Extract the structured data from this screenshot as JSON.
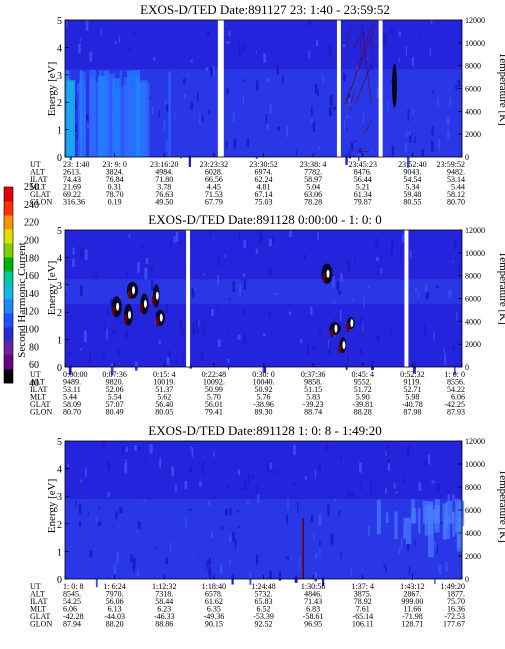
{
  "colorbar": {
    "label": "Second Harmonic Current",
    "ticks": [
      "40",
      "60",
      "80",
      "100",
      "120",
      "140",
      "160",
      "180",
      "200",
      "220",
      "240",
      "250"
    ],
    "colors": [
      "#000000",
      "#6a0080",
      "#6b1fa6",
      "#2b2bd1",
      "#1f4fff",
      "#1e88ff",
      "#17b6e8",
      "#00c8a0",
      "#00b000",
      "#7fd000",
      "#e0e000",
      "#ff9000",
      "#ff3000",
      "#e00000"
    ]
  },
  "colors": {
    "background_plasma": "#2424dc",
    "gap": "#ffffff",
    "fill_base": "#2a3ae8",
    "trace_dark": "#6a0000"
  },
  "eph_labels": [
    "UT",
    "ALT",
    "ILAT",
    "MLT",
    "GLAT",
    "GLON"
  ],
  "chart_data": [
    {
      "type": "heatmap",
      "title": "EXOS-D/TED   Date:891127  23: 1:40 - 23:59:52",
      "ylabel": "Energy [eV]",
      "y2label": "Temperature [K]",
      "ylim": [
        0,
        5
      ],
      "y2lim": [
        0,
        12000
      ],
      "yticks": [
        "0",
        "1",
        "2",
        "3",
        "4",
        "5"
      ],
      "y2ticks": [
        "0",
        "2000",
        "4000",
        "6000",
        "8000",
        "10000",
        "12000"
      ],
      "band_top_ev": 3.2,
      "bright_region": {
        "x_from": 0,
        "x_to": 0.28,
        "energy_top": 3.2
      },
      "gaps": [
        [
          0.385,
          0.4
        ],
        [
          0.685,
          0.695
        ],
        [
          0.79,
          0.8
        ]
      ],
      "ephemeris": [
        [
          "23: 1:40",
          "2613.",
          "74.43",
          "21.69",
          "69.22",
          "316.36"
        ],
        [
          "23: 9: 0",
          "3824.",
          "76.84",
          "0.31",
          "78.70",
          "0.19"
        ],
        [
          "23:16:20",
          "4984.",
          "71.80",
          "3.78",
          "76.63",
          "49.50"
        ],
        [
          "23:23:32",
          "6028.",
          "66.56",
          "4.45",
          "71.53",
          "67.79"
        ],
        [
          "23:30:52",
          "6974.",
          "62.24",
          "4.81",
          "67.14",
          "75.03"
        ],
        [
          "23:38: 4",
          "7782.",
          "58.97",
          "5.04",
          "63.06",
          "78.28"
        ],
        [
          "23:45:23",
          "8476.",
          "56.44",
          "5.21",
          "61.34",
          "79.87"
        ],
        [
          "23:52:40",
          "9043.",
          "54.54",
          "5.34",
          "59.48",
          "80.55"
        ],
        [
          "23:59:52",
          "9482.",
          "53.14",
          "5.44",
          "58.12",
          "80.70"
        ]
      ]
    },
    {
      "type": "heatmap",
      "title": "EXOS-D/TED   Date:891128  0:00:00 - 1: 0: 0",
      "ylabel": "Energy [eV]",
      "y2label": "Temperature [K]",
      "ylim": [
        0,
        5
      ],
      "y2lim": [
        0,
        12000
      ],
      "yticks": [
        "0",
        "1",
        "2",
        "3",
        "4",
        "5"
      ],
      "y2ticks": [
        "0",
        "2000",
        "4000",
        "6000",
        "8000",
        "10000",
        "12000"
      ],
      "band_from_ev": 2.3,
      "band_top_ev": 3.2,
      "gaps": [
        [
          0.305,
          0.315
        ],
        [
          0.855,
          0.865
        ]
      ],
      "ephemeris": [
        [
          "0:00:00",
          "9489.",
          "53.11",
          "5.44",
          "58.09",
          "80.70"
        ],
        [
          "0:07:36",
          "9820.",
          "52.06",
          "5.54",
          "57.07",
          "80.49"
        ],
        [
          "0:15: 4",
          "10019.",
          "51.37",
          "5.62",
          "56.40",
          "80.05"
        ],
        [
          "0:22:48",
          "10092.",
          "50.99",
          "5.70",
          "56.01",
          "79.41"
        ],
        [
          "0:30: 0",
          "10040.",
          "50.92",
          "5.76",
          "-38.96",
          "89.30"
        ],
        [
          "0:37:36",
          "9858.",
          "51.15",
          "5.83",
          "-39.23",
          "88.74"
        ],
        [
          "0:45: 4",
          "9552.",
          "51.72",
          "5.90",
          "-39.81",
          "88.28"
        ],
        [
          "0:52:32",
          "9119.",
          "52.71",
          "5.98",
          "-40.78",
          "87.98"
        ],
        [
          "1: 0: 0",
          "8556.",
          "54.22",
          "6.06",
          "-42.25",
          "87.93"
        ]
      ]
    },
    {
      "type": "heatmap",
      "title": "EXOS-D/TED   Date:891128  1: 0: 8 - 1:49:20",
      "ylabel": "Energy [eV]",
      "y2label": "Temperature [K]",
      "ylim": [
        0,
        5
      ],
      "y2lim": [
        0,
        12000
      ],
      "yticks": [
        "0",
        "1",
        "2",
        "3",
        "4",
        "5"
      ],
      "y2ticks": [
        "0",
        "2000",
        "4000",
        "6000",
        "8000",
        "10000",
        "12000"
      ],
      "band_top_ev": 2.9,
      "gaps": [],
      "ephemeris": [
        [
          "1: 0: 8",
          "8545.",
          "54.25",
          "6.06",
          "-42.28",
          "87.94"
        ],
        [
          "1: 6:24",
          "7970.",
          "56.06",
          "6.13",
          "-44.03",
          "88.20"
        ],
        [
          "1:12:32",
          "7318.",
          "58.44",
          "6.23",
          "-46.33",
          "88.86"
        ],
        [
          "1:18:40",
          "6578.",
          "61.62",
          "6.35",
          "-49.36",
          "90.15"
        ],
        [
          "1:24:48",
          "5732.",
          "65.83",
          "6.52",
          "-53.39",
          "92.52"
        ],
        [
          "1:30:56",
          "4846.",
          "71.43",
          "6.83",
          "-58.61",
          "96.95"
        ],
        [
          "1:37: 4",
          "3875.",
          "78.92",
          "7.61",
          "-65.14",
          "106.11"
        ],
        [
          "1:43:12",
          "2867.",
          "999.00",
          "11.66",
          "-71.98",
          "128.71"
        ],
        [
          "1:49:20",
          "1877.",
          "75.70",
          "16.36",
          "-72.53",
          "177.67"
        ]
      ]
    }
  ]
}
